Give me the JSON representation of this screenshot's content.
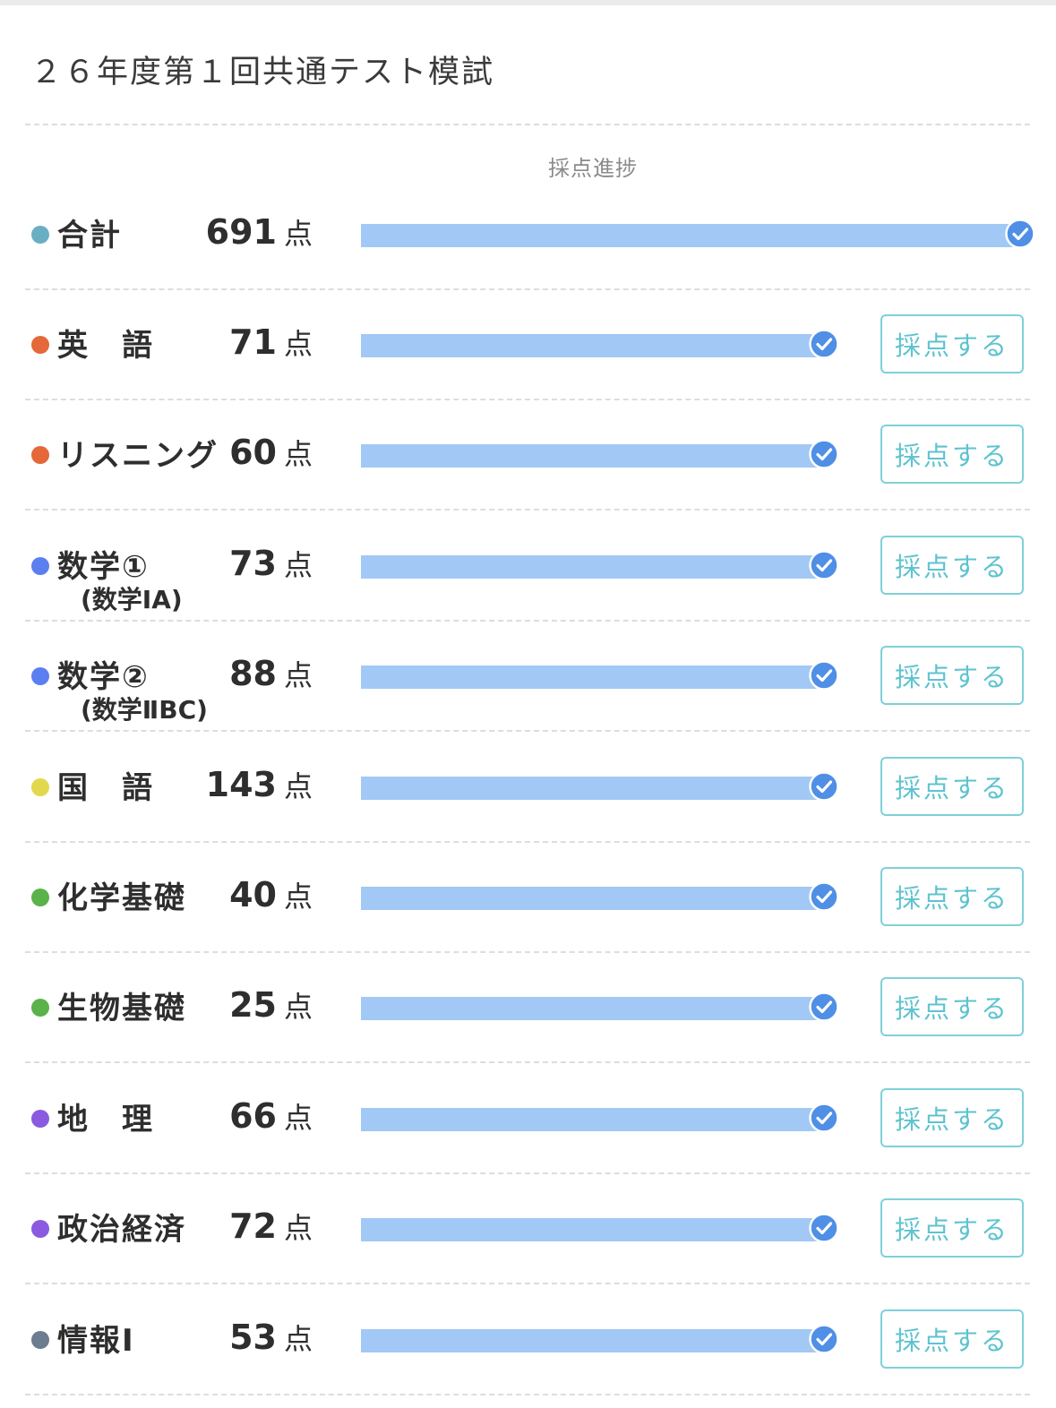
{
  "page": {
    "title": "２６年度第１回共通テスト模試",
    "progress_header": "採点進捗"
  },
  "colors": {
    "bar": "#a2c8f5",
    "check": "#4f8fe6",
    "button": "#5ec3cf"
  },
  "rows": [
    {
      "name": "合計",
      "sub": "",
      "score": "691",
      "unit": "点",
      "progress": 1.0,
      "button": "",
      "dot": "#6aaec4"
    },
    {
      "name": "英　語",
      "sub": "",
      "score": "71",
      "unit": "点",
      "progress": 1.0,
      "button": "採点する",
      "dot": "#e4683a"
    },
    {
      "name": "リスニング",
      "sub": "",
      "score": "60",
      "unit": "点",
      "progress": 1.0,
      "button": "採点する",
      "dot": "#e4683a"
    },
    {
      "name": "数学①",
      "sub": "(数学ⅠA)",
      "score": "73",
      "unit": "点",
      "progress": 1.0,
      "button": "採点する",
      "dot": "#5b7ff0"
    },
    {
      "name": "数学②",
      "sub": "(数学ⅡBC)",
      "score": "88",
      "unit": "点",
      "progress": 1.0,
      "button": "採点する",
      "dot": "#5b7ff0"
    },
    {
      "name": "国　語",
      "sub": "",
      "score": "143",
      "unit": "点",
      "progress": 1.0,
      "button": "採点する",
      "dot": "#e3d84d"
    },
    {
      "name": "化学基礎",
      "sub": "",
      "score": "40",
      "unit": "点",
      "progress": 1.0,
      "button": "採点する",
      "dot": "#5ab24a"
    },
    {
      "name": "生物基礎",
      "sub": "",
      "score": "25",
      "unit": "点",
      "progress": 1.0,
      "button": "採点する",
      "dot": "#5ab24a"
    },
    {
      "name": "地　理",
      "sub": "",
      "score": "66",
      "unit": "点",
      "progress": 1.0,
      "button": "採点する",
      "dot": "#8a5ae0"
    },
    {
      "name": "政治経済",
      "sub": "",
      "score": "72",
      "unit": "点",
      "progress": 1.0,
      "button": "採点する",
      "dot": "#8a5ae0"
    },
    {
      "name": "情報Ⅰ",
      "sub": "",
      "score": "53",
      "unit": "点",
      "progress": 1.0,
      "button": "採点する",
      "dot": "#6b7d8e"
    }
  ]
}
